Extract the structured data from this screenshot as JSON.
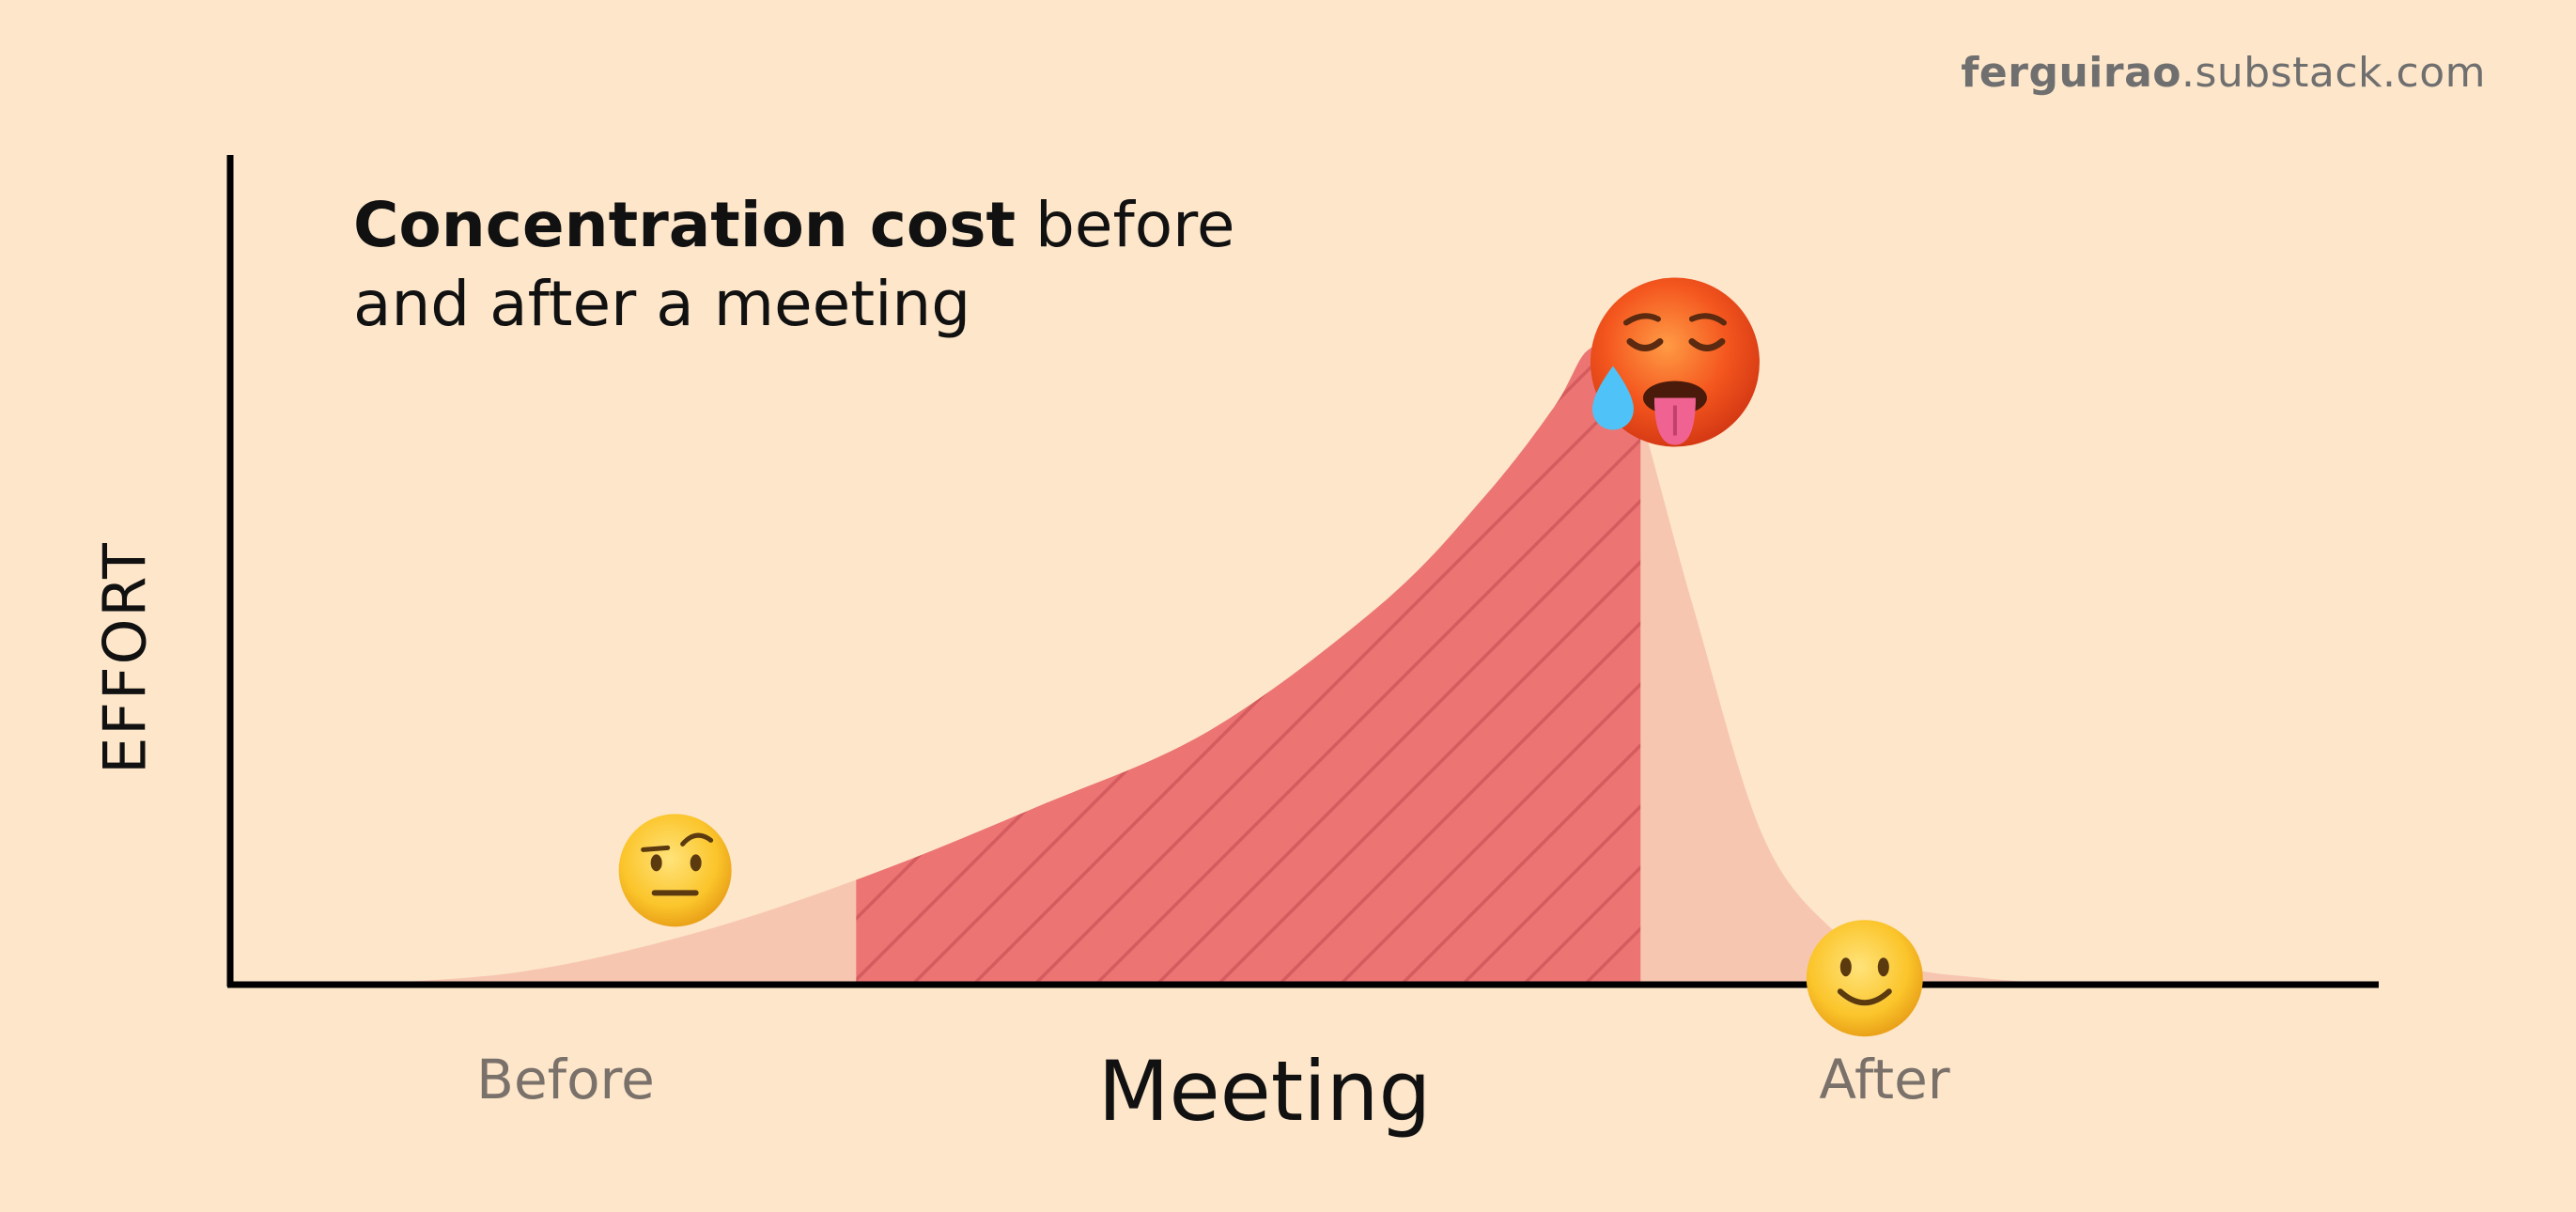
{
  "watermark": {
    "bold": "ferguirao",
    "rest": ".substack.com"
  },
  "title": {
    "bold": "Concentration cost",
    "rest_line1": " before",
    "line2": "and after a meeting"
  },
  "chart_data": {
    "type": "area",
    "ylabel": "EFFORT",
    "xlabel": "Meeting",
    "x_segments": [
      "Before",
      "Meeting",
      "After"
    ],
    "highlighted_segment": "Meeting",
    "y_units": "relative effort (0 = none, 100 = peak)",
    "curve": {
      "x": [
        0,
        10,
        20,
        30,
        40,
        50,
        60,
        66,
        70,
        72,
        74,
        78,
        82,
        86,
        90,
        95,
        100
      ],
      "y": [
        0,
        2,
        8,
        17,
        28,
        40,
        60,
        77,
        91,
        100,
        98,
        60,
        24,
        9,
        3,
        1,
        0
      ]
    },
    "meeting_range": [
      29.5,
      75
    ],
    "markers": [
      {
        "label": "raised-eyebrow-face",
        "x": 19,
        "y": 18
      },
      {
        "label": "hot-face",
        "x": 77,
        "y": 98
      },
      {
        "label": "slightly-smiling-face",
        "x": 88,
        "y": 1
      }
    ],
    "colors": {
      "background": "#FDE6CA",
      "light_area": "#F7C6B1",
      "meeting_area": "#EC7473",
      "hatch": "#D45C5E",
      "axis": "#000000"
    }
  }
}
